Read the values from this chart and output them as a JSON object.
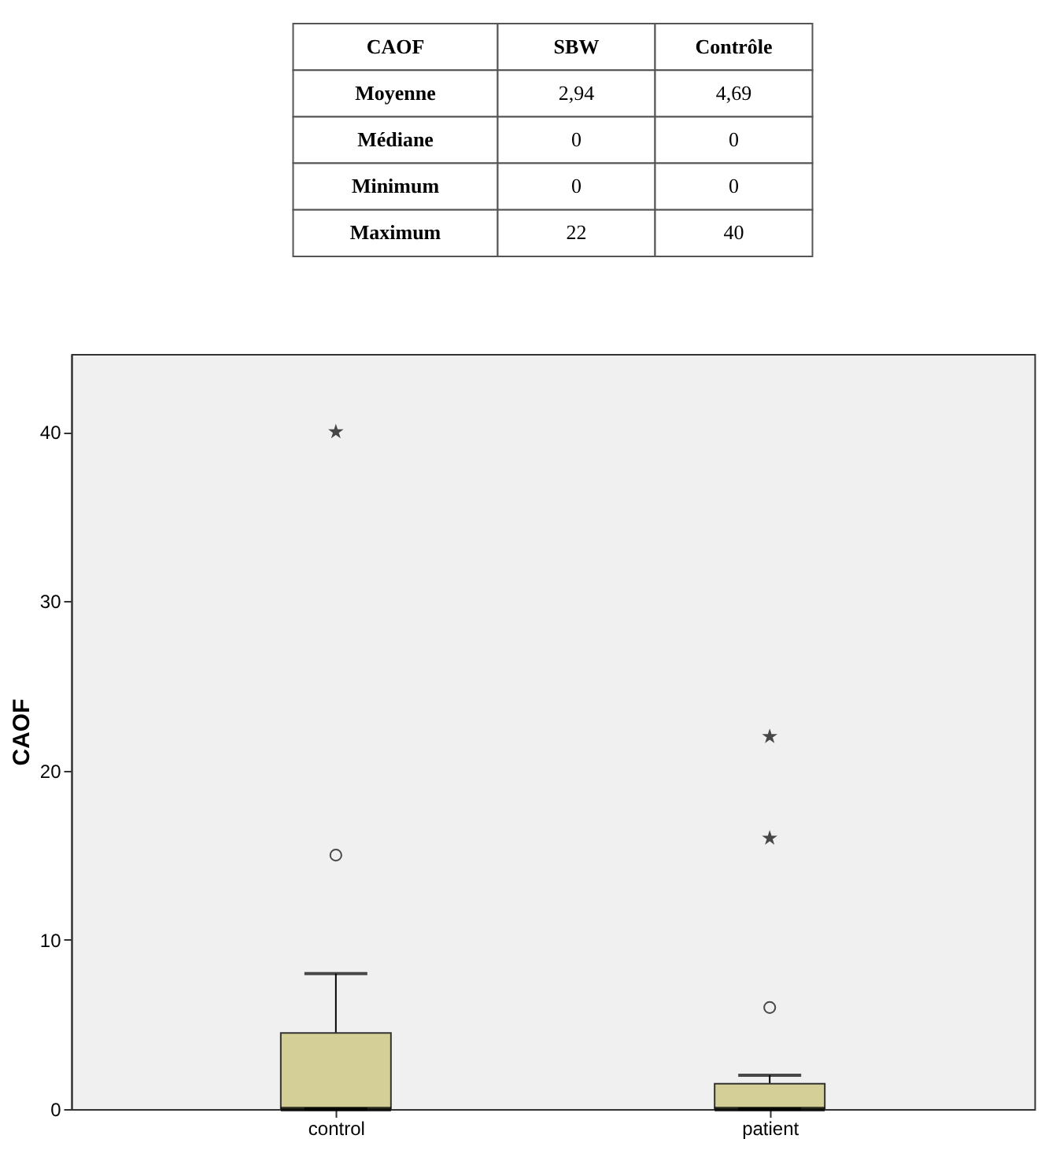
{
  "chart_data": [
    {
      "type": "other",
      "annotations": [
        "CAOF"
      ],
      "categories": [
        "SBW",
        "Contrôle"
      ],
      "y_categories": [
        "Moyenne",
        "Médiane",
        "Minimum",
        "Maximum"
      ],
      "cell_labels": [
        [
          "2,94",
          "4,69"
        ],
        [
          "0",
          "0"
        ],
        [
          "0",
          "0"
        ],
        [
          "22",
          "40"
        ]
      ]
    },
    {
      "type": "box",
      "ylabel": "CAOF",
      "categories": [
        "control",
        "patient"
      ],
      "ylim": [
        0,
        44.6
      ],
      "yticks": [
        0,
        10,
        20,
        30,
        40
      ],
      "grid": false,
      "series": [
        {
          "color": "#d4cf96",
          "boxes": [
            {
              "low": 0,
              "q1": 0,
              "median": 0,
              "q3": 4.5,
              "high": 8,
              "outliers": [
                15,
                40
              ]
            },
            {
              "low": 0,
              "q1": 0,
              "median": 0,
              "q3": 1.5,
              "high": 2,
              "outliers": [
                6,
                16,
                22
              ]
            }
          ]
        }
      ]
    }
  ]
}
